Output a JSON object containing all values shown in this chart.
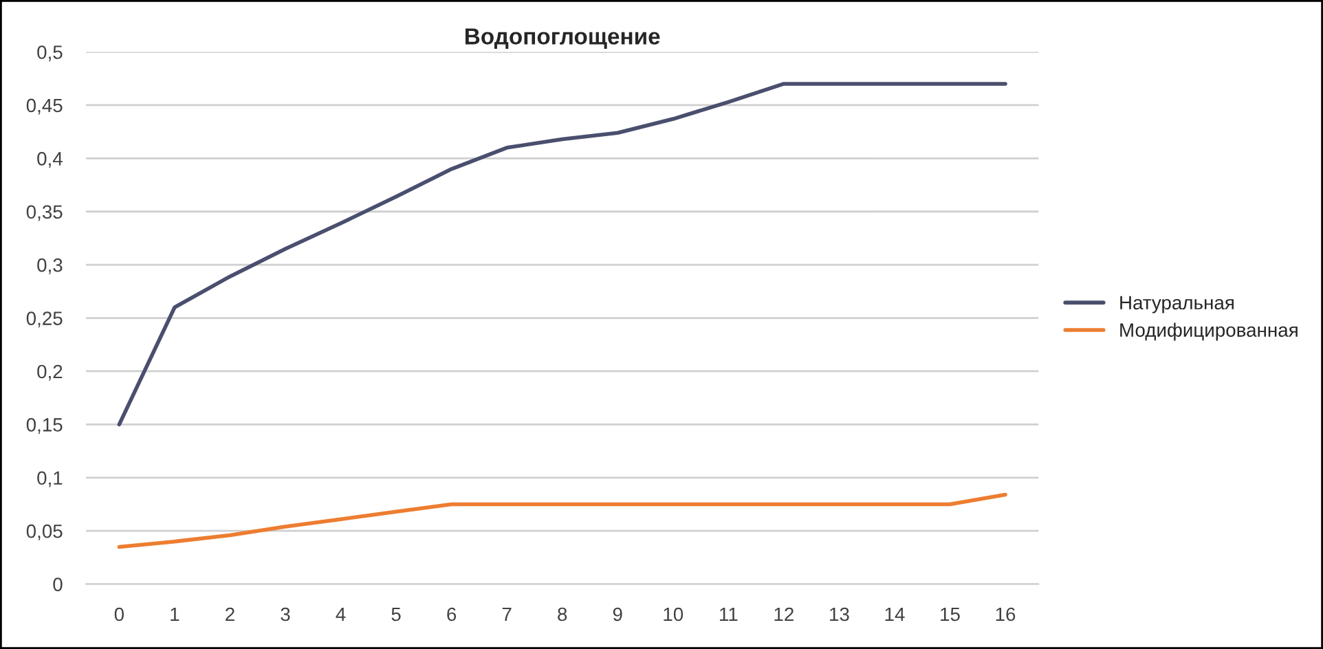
{
  "chart_data": {
    "type": "line",
    "title": "Водопоглощение",
    "categories": [
      "0",
      "1",
      "2",
      "3",
      "4",
      "5",
      "6",
      "7",
      "8",
      "9",
      "10",
      "11",
      "12",
      "13",
      "14",
      "15",
      "16"
    ],
    "series": [
      {
        "name": "Натуральная",
        "color": "#4b4f6e",
        "values": [
          0.15,
          0.26,
          0.289,
          0.315,
          0.339,
          0.364,
          0.39,
          0.41,
          0.418,
          0.424,
          0.437,
          0.453,
          0.47,
          0.47,
          0.47,
          0.47,
          0.47
        ]
      },
      {
        "name": "Модифицированная",
        "color": "#ed7d31",
        "values": [
          0.035,
          0.04,
          0.046,
          0.054,
          0.061,
          0.068,
          0.075,
          0.075,
          0.075,
          0.075,
          0.075,
          0.075,
          0.075,
          0.075,
          0.075,
          0.075,
          0.084
        ]
      }
    ],
    "ylim": [
      0,
      0.5
    ],
    "yticks": [
      {
        "value": 0,
        "label": "0"
      },
      {
        "value": 0.05,
        "label": "0,05"
      },
      {
        "value": 0.1,
        "label": "0,1"
      },
      {
        "value": 0.15,
        "label": "0,15"
      },
      {
        "value": 0.2,
        "label": "0,2"
      },
      {
        "value": 0.25,
        "label": "0,25"
      },
      {
        "value": 0.3,
        "label": "0,3"
      },
      {
        "value": 0.35,
        "label": "0,35"
      },
      {
        "value": 0.4,
        "label": "0,4"
      },
      {
        "value": 0.45,
        "label": "0,45"
      },
      {
        "value": 0.5,
        "label": "0,5"
      }
    ],
    "grid": "y",
    "legend": "right",
    "marker": "none",
    "line_style": "solid"
  }
}
